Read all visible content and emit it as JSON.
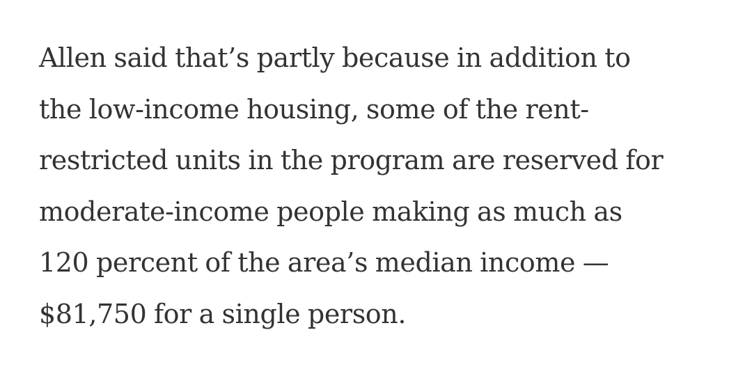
{
  "article": {
    "lines": [
      "Allen said that’s partly because in addition to",
      "the low-income housing, some of the rent-",
      "restricted units in the program are reserved for",
      "moderate-income people making as much as",
      "120 percent of the area’s median income —",
      "$81,750 for a single person."
    ]
  },
  "colors": {
    "text": "#333333",
    "background": "#ffffff"
  }
}
